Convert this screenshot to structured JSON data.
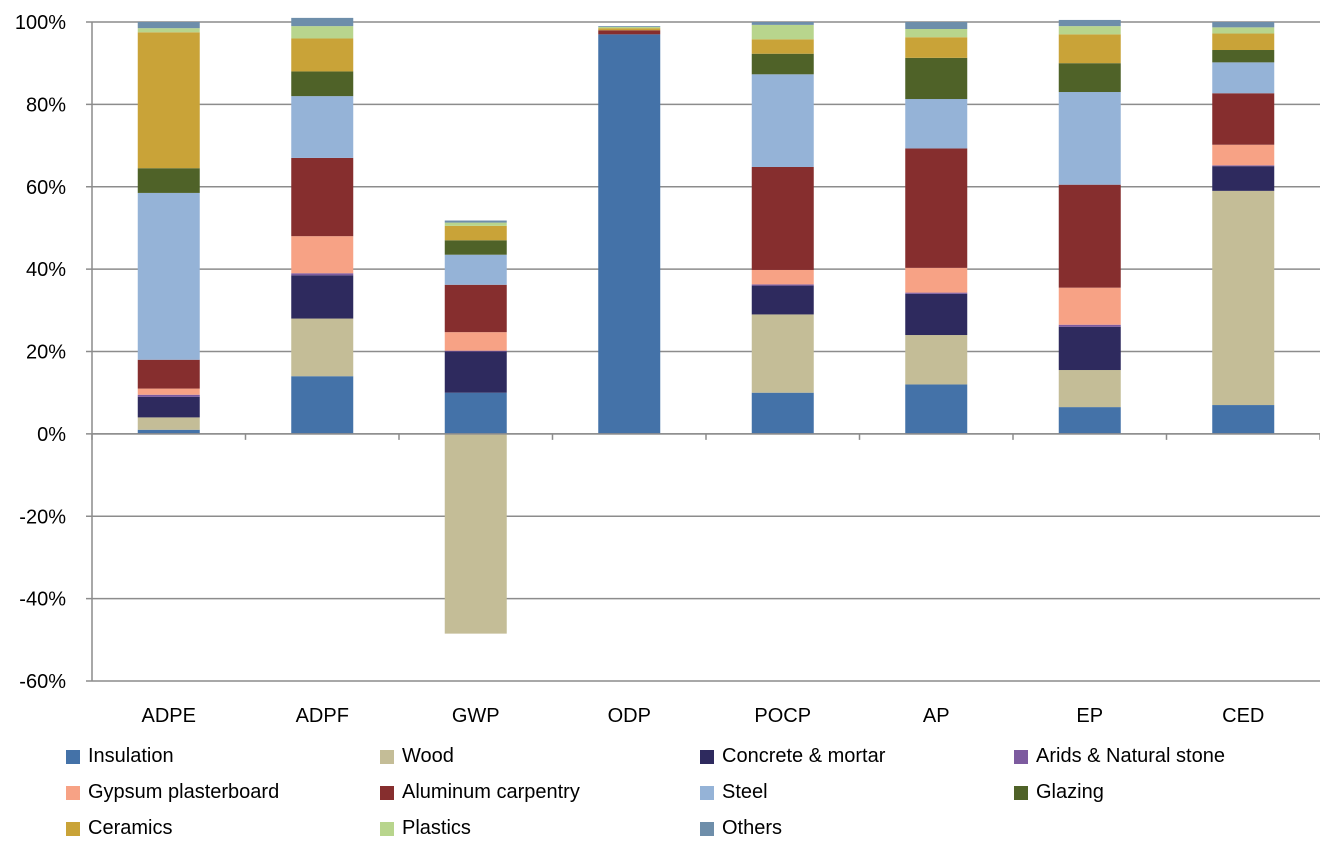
{
  "chart_data": {
    "type": "bar",
    "stacked": true,
    "percent": true,
    "title": "",
    "xlabel": "",
    "ylabel": "",
    "ylim": [
      -60,
      100
    ],
    "yticks": [
      "100%",
      "80%",
      "60%",
      "40%",
      "20%",
      "0%",
      "-20%",
      "-40%",
      "-60%"
    ],
    "ytick_values": [
      100,
      80,
      60,
      40,
      20,
      0,
      -20,
      -40,
      -60
    ],
    "grid": true,
    "legend_position": "bottom",
    "categories": [
      "ADPE",
      "ADPF",
      "GWP",
      "ODP",
      "POCP",
      "AP",
      "EP",
      "CED"
    ],
    "series": [
      {
        "name": "Insulation",
        "color": "#4472A8",
        "values": [
          1,
          14,
          10,
          97,
          10,
          12,
          6.5,
          7
        ]
      },
      {
        "name": "Wood",
        "color": "#C4BD97",
        "values": [
          3,
          14,
          -48.5,
          0,
          19,
          12,
          9,
          52
        ]
      },
      {
        "name": "Concrete & mortar",
        "color": "#2E2A5E",
        "values": [
          5,
          10.5,
          10,
          0,
          7,
          10,
          10.5,
          6
        ]
      },
      {
        "name": "Arids & Natural stone",
        "color": "#7D5B9F",
        "values": [
          0.5,
          0.5,
          0.2,
          0,
          0.3,
          0.3,
          0.5,
          0.2
        ]
      },
      {
        "name": "Gypsum plasterboard",
        "color": "#F7A285",
        "values": [
          1.5,
          9,
          4.5,
          0,
          3.5,
          6,
          9,
          5
        ]
      },
      {
        "name": "Aluminum carpentry",
        "color": "#862E2E",
        "values": [
          7,
          19,
          11.5,
          1,
          25,
          29,
          25,
          12.5
        ]
      },
      {
        "name": "Steel",
        "color": "#95B3D7",
        "values": [
          40.5,
          15,
          7.3,
          0,
          22.5,
          12,
          22.5,
          7.5
        ]
      },
      {
        "name": "Glazing",
        "color": "#4F6228",
        "values": [
          6,
          6,
          3.5,
          0,
          5,
          10,
          7,
          3
        ]
      },
      {
        "name": "Ceramics",
        "color": "#C9A338",
        "values": [
          33,
          8,
          3.5,
          0.5,
          3.5,
          5,
          7,
          4
        ]
      },
      {
        "name": "Plastics",
        "color": "#B8D58D",
        "values": [
          1,
          3,
          0.8,
          0.3,
          3.5,
          2,
          2,
          1.5
        ]
      },
      {
        "name": "Others",
        "color": "#6E8EAA",
        "values": [
          1.5,
          2,
          0.5,
          0.2,
          0.7,
          1.7,
          1.5,
          1.3
        ]
      }
    ]
  }
}
